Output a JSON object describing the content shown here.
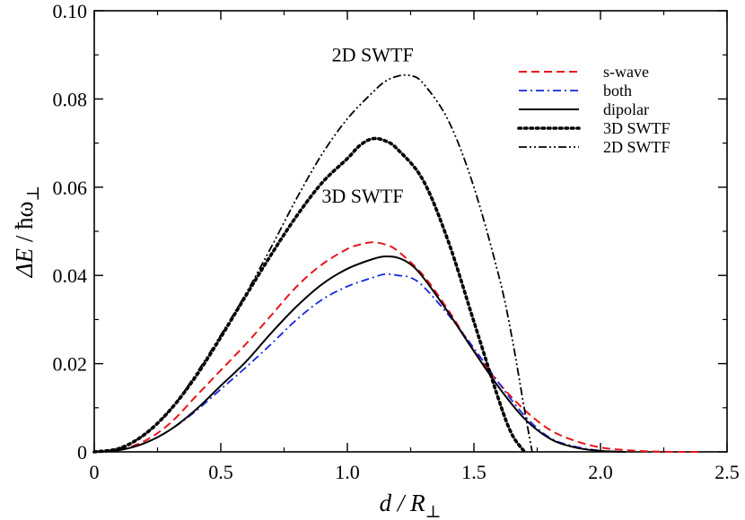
{
  "chart_data": {
    "type": "line",
    "xlabel": {
      "main": "d",
      "mid": " / R",
      "sub": "⊥"
    },
    "ylabel": {
      "main": "ΔE",
      "mid": " / ħω",
      "sub": "⊥"
    },
    "xlim": [
      0,
      2.5
    ],
    "ylim": [
      0,
      0.1
    ],
    "x_ticks": [
      {
        "v": 0,
        "label": "0"
      },
      {
        "v": 0.5,
        "label": "0.5"
      },
      {
        "v": 1.0,
        "label": "1.0"
      },
      {
        "v": 1.5,
        "label": "1.5"
      },
      {
        "v": 2.0,
        "label": "2.0"
      },
      {
        "v": 2.5,
        "label": "2.5"
      }
    ],
    "y_ticks": [
      {
        "v": 0,
        "label": "0"
      },
      {
        "v": 0.02,
        "label": "0.02"
      },
      {
        "v": 0.04,
        "label": "0.04"
      },
      {
        "v": 0.06,
        "label": "0.06"
      },
      {
        "v": 0.08,
        "label": "0.08"
      },
      {
        "v": 0.1,
        "label": "0.10"
      }
    ],
    "grid": false,
    "legend_placement": "top-right",
    "annotations": [
      {
        "text": "2D SWTF",
        "x": 1.1,
        "y": 0.0885
      },
      {
        "text": "3D SWTF",
        "x": 1.06,
        "y": 0.0565
      }
    ],
    "series": [
      {
        "name": "s-wave",
        "color": "#e8151b",
        "style": "dashed",
        "points": [
          [
            0,
            0
          ],
          [
            0.1,
            0.0005
          ],
          [
            0.2,
            0.0025
          ],
          [
            0.3,
            0.0065
          ],
          [
            0.4,
            0.0125
          ],
          [
            0.5,
            0.0185
          ],
          [
            0.6,
            0.0245
          ],
          [
            0.7,
            0.031
          ],
          [
            0.8,
            0.0375
          ],
          [
            0.9,
            0.0425
          ],
          [
            1.0,
            0.046
          ],
          [
            1.05,
            0.047
          ],
          [
            1.1,
            0.0475
          ],
          [
            1.15,
            0.047
          ],
          [
            1.2,
            0.0455
          ],
          [
            1.3,
            0.04
          ],
          [
            1.4,
            0.032
          ],
          [
            1.5,
            0.023
          ],
          [
            1.6,
            0.0155
          ],
          [
            1.7,
            0.0095
          ],
          [
            1.8,
            0.005
          ],
          [
            1.9,
            0.0025
          ],
          [
            2.0,
            0.001
          ],
          [
            2.1,
            0.0004
          ],
          [
            2.2,
            0.0001
          ],
          [
            2.3,
            0
          ],
          [
            2.4,
            0
          ]
        ]
      },
      {
        "name": "both",
        "color": "#1428e0",
        "style": "dashdot",
        "points": [
          [
            0,
            0
          ],
          [
            0.1,
            0.0004
          ],
          [
            0.2,
            0.002
          ],
          [
            0.3,
            0.005
          ],
          [
            0.4,
            0.0092
          ],
          [
            0.5,
            0.0142
          ],
          [
            0.6,
            0.0192
          ],
          [
            0.7,
            0.0245
          ],
          [
            0.8,
            0.03
          ],
          [
            0.9,
            0.0345
          ],
          [
            1.0,
            0.0375
          ],
          [
            1.1,
            0.0395
          ],
          [
            1.15,
            0.0403
          ],
          [
            1.2,
            0.04
          ],
          [
            1.25,
            0.0395
          ],
          [
            1.3,
            0.0375
          ],
          [
            1.4,
            0.031
          ],
          [
            1.5,
            0.0235
          ],
          [
            1.6,
            0.0155
          ],
          [
            1.7,
            0.0082
          ],
          [
            1.8,
            0.0032
          ],
          [
            1.9,
            0.0012
          ],
          [
            2.0,
            0.0003
          ],
          [
            2.1,
            0
          ]
        ]
      },
      {
        "name": "dipolar",
        "color": "#000000",
        "style": "solid",
        "points": [
          [
            0,
            0
          ],
          [
            0.1,
            0.0004
          ],
          [
            0.2,
            0.002
          ],
          [
            0.3,
            0.005
          ],
          [
            0.4,
            0.0095
          ],
          [
            0.5,
            0.015
          ],
          [
            0.6,
            0.0205
          ],
          [
            0.7,
            0.027
          ],
          [
            0.8,
            0.033
          ],
          [
            0.9,
            0.038
          ],
          [
            1.0,
            0.0415
          ],
          [
            1.1,
            0.0437
          ],
          [
            1.15,
            0.0443
          ],
          [
            1.2,
            0.044
          ],
          [
            1.25,
            0.0425
          ],
          [
            1.3,
            0.0395
          ],
          [
            1.4,
            0.0315
          ],
          [
            1.5,
            0.0228
          ],
          [
            1.6,
            0.0145
          ],
          [
            1.7,
            0.0075
          ],
          [
            1.8,
            0.003
          ],
          [
            1.9,
            0.001
          ],
          [
            2.0,
            0.0002
          ],
          [
            2.1,
            0
          ]
        ]
      },
      {
        "name": "3D SWTF",
        "color": "#000000",
        "style": "dotted",
        "points": [
          [
            0,
            0
          ],
          [
            0.1,
            0.0008
          ],
          [
            0.2,
            0.004
          ],
          [
            0.3,
            0.0095
          ],
          [
            0.4,
            0.017
          ],
          [
            0.5,
            0.026
          ],
          [
            0.6,
            0.0355
          ],
          [
            0.7,
            0.0448
          ],
          [
            0.8,
            0.0535
          ],
          [
            0.9,
            0.061
          ],
          [
            1.0,
            0.0665
          ],
          [
            1.05,
            0.0695
          ],
          [
            1.1,
            0.071
          ],
          [
            1.15,
            0.0705
          ],
          [
            1.2,
            0.0685
          ],
          [
            1.3,
            0.0615
          ],
          [
            1.4,
            0.0475
          ],
          [
            1.5,
            0.0295
          ],
          [
            1.6,
            0.0115
          ],
          [
            1.65,
            0.004
          ],
          [
            1.7,
            0
          ]
        ]
      },
      {
        "name": "2D SWTF",
        "color": "#000000",
        "style": "dashdotdot",
        "points": [
          [
            0,
            0
          ],
          [
            0.1,
            0.0008
          ],
          [
            0.2,
            0.004
          ],
          [
            0.3,
            0.0095
          ],
          [
            0.4,
            0.0175
          ],
          [
            0.5,
            0.0265
          ],
          [
            0.6,
            0.036
          ],
          [
            0.7,
            0.0465
          ],
          [
            0.8,
            0.0575
          ],
          [
            0.9,
            0.0675
          ],
          [
            1.0,
            0.0755
          ],
          [
            1.1,
            0.0815
          ],
          [
            1.15,
            0.084
          ],
          [
            1.2,
            0.0852
          ],
          [
            1.25,
            0.0853
          ],
          [
            1.3,
            0.0835
          ],
          [
            1.4,
            0.075
          ],
          [
            1.5,
            0.06
          ],
          [
            1.6,
            0.0395
          ],
          [
            1.65,
            0.026
          ],
          [
            1.7,
            0.0095
          ],
          [
            1.73,
            0
          ]
        ]
      }
    ]
  }
}
